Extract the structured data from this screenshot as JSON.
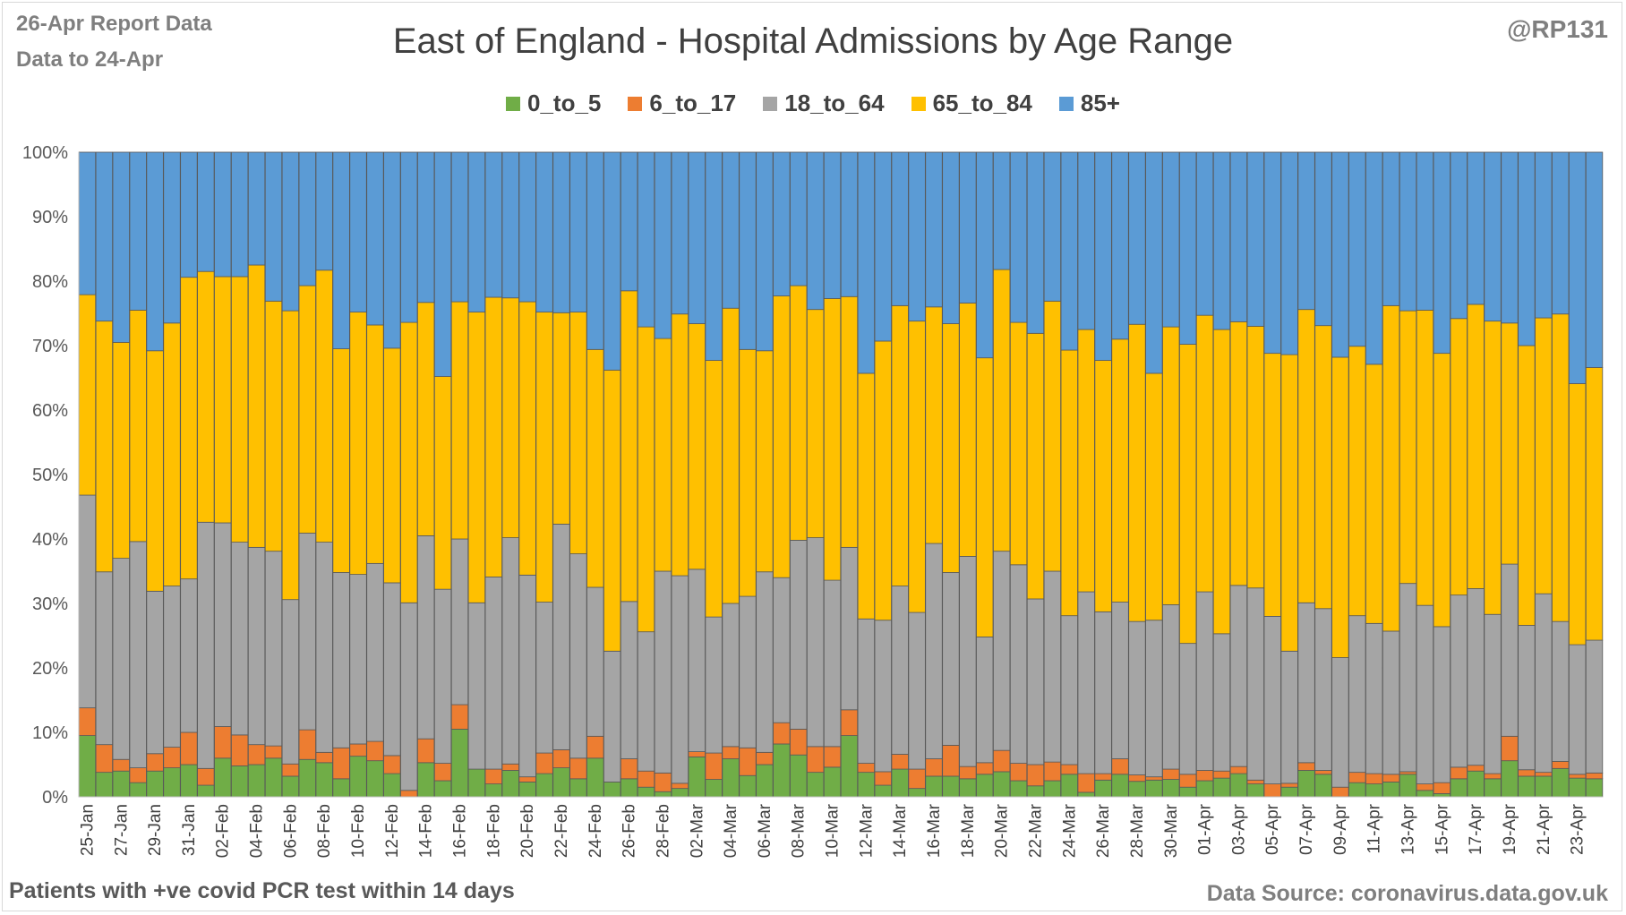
{
  "header": {
    "report_date": "26-Apr Report Data",
    "data_to": "Data to 24-Apr",
    "handle": "@RP131"
  },
  "footer": {
    "note": "Patients with  +ve covid PCR test within 14 days",
    "source": "Data Source: coronavirus.data.gov.uk"
  },
  "colors": {
    "0_to_5": "#70ad47",
    "6_to_17": "#ed7d31",
    "18_to_64": "#a5a5a5",
    "65_to_84": "#ffc000",
    "85+": "#5b9bd5"
  },
  "chart_data": {
    "type": "bar",
    "stacked": true,
    "percent": true,
    "title": "East of England - Hospital Admissions by Age Range",
    "xlabel": "",
    "ylabel": "",
    "ylim": [
      0,
      100
    ],
    "yticks": [
      "0%",
      "10%",
      "20%",
      "30%",
      "40%",
      "50%",
      "60%",
      "70%",
      "80%",
      "90%",
      "100%"
    ],
    "legend_position": "top",
    "grid": true,
    "xtick_labels": [
      "25-Jan",
      "27-Jan",
      "29-Jan",
      "31-Jan",
      "02-Feb",
      "04-Feb",
      "06-Feb",
      "08-Feb",
      "10-Feb",
      "12-Feb",
      "14-Feb",
      "16-Feb",
      "18-Feb",
      "20-Feb",
      "22-Feb",
      "24-Feb",
      "26-Feb",
      "28-Feb",
      "02-Mar",
      "04-Mar",
      "06-Mar",
      "08-Mar",
      "10-Mar",
      "12-Mar",
      "14-Mar",
      "16-Mar",
      "18-Mar",
      "20-Mar",
      "22-Mar",
      "24-Mar",
      "26-Mar",
      "28-Mar",
      "30-Mar",
      "01-Apr",
      "03-Apr",
      "05-Apr",
      "07-Apr",
      "09-Apr",
      "11-Apr",
      "13-Apr",
      "15-Apr",
      "17-Apr",
      "19-Apr",
      "21-Apr",
      "23-Apr"
    ],
    "categories": [
      "25-Jan",
      "26-Jan",
      "27-Jan",
      "28-Jan",
      "29-Jan",
      "30-Jan",
      "31-Jan",
      "01-Feb",
      "02-Feb",
      "03-Feb",
      "04-Feb",
      "05-Feb",
      "06-Feb",
      "07-Feb",
      "08-Feb",
      "09-Feb",
      "10-Feb",
      "11-Feb",
      "12-Feb",
      "13-Feb",
      "14-Feb",
      "15-Feb",
      "16-Feb",
      "17-Feb",
      "18-Feb",
      "19-Feb",
      "20-Feb",
      "21-Feb",
      "22-Feb",
      "23-Feb",
      "24-Feb",
      "25-Feb",
      "26-Feb",
      "27-Feb",
      "28-Feb",
      "01-Mar",
      "02-Mar",
      "03-Mar",
      "04-Mar",
      "05-Mar",
      "06-Mar",
      "07-Mar",
      "08-Mar",
      "09-Mar",
      "10-Mar",
      "11-Mar",
      "12-Mar",
      "13-Mar",
      "14-Mar",
      "15-Mar",
      "16-Mar",
      "17-Mar",
      "18-Mar",
      "19-Mar",
      "20-Mar",
      "21-Mar",
      "22-Mar",
      "23-Mar",
      "24-Mar",
      "25-Mar",
      "26-Mar",
      "27-Mar",
      "28-Mar",
      "29-Mar",
      "30-Mar",
      "31-Mar",
      "01-Apr",
      "02-Apr",
      "03-Apr",
      "04-Apr",
      "05-Apr",
      "06-Apr",
      "07-Apr",
      "08-Apr",
      "09-Apr",
      "10-Apr",
      "11-Apr",
      "12-Apr",
      "13-Apr",
      "14-Apr",
      "15-Apr",
      "16-Apr",
      "17-Apr",
      "18-Apr",
      "19-Apr",
      "20-Apr",
      "21-Apr",
      "22-Apr",
      "23-Apr",
      "24-Apr"
    ],
    "series": [
      {
        "name": "0_to_5",
        "values": [
          9.5,
          3.8,
          4.0,
          2.2,
          4.0,
          4.5,
          5.0,
          1.8,
          6.0,
          4.8,
          5.0,
          6.0,
          3.2,
          5.8,
          5.3,
          2.8,
          6.3,
          5.6,
          3.6,
          0.0,
          5.3,
          2.5,
          10.5,
          4.3,
          2.0,
          4.1,
          2.3,
          3.6,
          4.5,
          2.8,
          6.0,
          2.3,
          2.8,
          1.5,
          0.8,
          1.3,
          6.2,
          2.7,
          5.9,
          3.3,
          5.0,
          8.2,
          6.5,
          3.8,
          4.6,
          9.5,
          3.8,
          1.8,
          4.3,
          1.3,
          3.2,
          3.2,
          2.8,
          3.5,
          3.9,
          2.5,
          1.7,
          2.5,
          3.5,
          0.7,
          2.6,
          3.5,
          2.4,
          2.6,
          2.7,
          1.5,
          2.5,
          2.9,
          3.6,
          2.0,
          0.0,
          1.5,
          4.1,
          3.5,
          0.0,
          2.2,
          2.0,
          2.3,
          3.5,
          1.0,
          0.5,
          2.8,
          4.0,
          2.8,
          5.6,
          3.2,
          3.2,
          4.4,
          2.9,
          2.8
        ]
      },
      {
        "name": "6_to_17",
        "values": [
          4.3,
          4.3,
          1.8,
          2.3,
          2.7,
          3.2,
          5.0,
          2.6,
          4.9,
          4.8,
          3.1,
          1.9,
          1.9,
          4.6,
          1.6,
          4.8,
          1.9,
          3.0,
          2.8,
          1.0,
          3.7,
          2.7,
          3.8,
          0.0,
          2.3,
          1.0,
          0.8,
          3.2,
          2.8,
          3.2,
          3.4,
          0.0,
          3.1,
          2.5,
          2.9,
          0.8,
          0.8,
          4.1,
          1.9,
          4.3,
          1.9,
          3.3,
          4.0,
          4.0,
          3.2,
          4.0,
          1.4,
          2.1,
          2.3,
          3.0,
          2.7,
          4.8,
          1.9,
          1.8,
          3.3,
          2.7,
          3.3,
          2.9,
          1.5,
          2.9,
          1.0,
          2.4,
          1.0,
          0.5,
          1.6,
          2.0,
          1.6,
          1.1,
          1.1,
          0.6,
          2.0,
          0.6,
          1.2,
          0.6,
          1.5,
          1.6,
          1.6,
          1.2,
          0.4,
          1.0,
          1.7,
          1.8,
          0.9,
          0.8,
          3.8,
          1.0,
          0.6,
          1.1,
          0.6,
          0.9
        ]
      },
      {
        "name": "18_to_64",
        "values": [
          33.0,
          26.8,
          31.2,
          35.1,
          25.2,
          25.0,
          23.8,
          38.2,
          31.6,
          29.9,
          30.6,
          30.2,
          25.5,
          30.5,
          32.6,
          27.2,
          26.3,
          27.6,
          26.8,
          29.1,
          31.5,
          27.0,
          25.7,
          25.8,
          29.8,
          35.1,
          31.3,
          23.4,
          35.0,
          31.7,
          23.1,
          20.3,
          24.4,
          21.6,
          31.3,
          32.2,
          28.3,
          21.1,
          22.2,
          23.5,
          28.0,
          22.5,
          29.3,
          32.4,
          25.8,
          25.2,
          22.4,
          23.5,
          26.1,
          24.3,
          33.4,
          26.8,
          32.6,
          19.5,
          30.9,
          30.8,
          25.7,
          29.6,
          23.1,
          28.2,
          25.1,
          24.3,
          23.8,
          24.3,
          25.5,
          20.3,
          27.7,
          21.3,
          28.1,
          29.8,
          26.0,
          20.5,
          24.8,
          25.1,
          20.1,
          24.3,
          23.3,
          22.2,
          29.2,
          27.7,
          24.2,
          26.7,
          27.4,
          24.7,
          26.7,
          22.4,
          27.7,
          21.7,
          20.1,
          20.6
        ]
      },
      {
        "name": "65_to_84",
        "values": [
          31.1,
          38.9,
          33.5,
          35.9,
          37.3,
          40.8,
          46.8,
          38.9,
          38.2,
          41.2,
          43.8,
          38.8,
          44.8,
          38.4,
          42.2,
          34.7,
          40.7,
          37.0,
          36.4,
          43.5,
          36.2,
          33.0,
          36.8,
          45.1,
          43.4,
          37.2,
          42.4,
          45.0,
          32.8,
          37.5,
          36.9,
          43.6,
          48.2,
          47.3,
          36.1,
          40.6,
          38.1,
          39.8,
          45.8,
          38.3,
          34.3,
          43.7,
          39.5,
          35.4,
          43.7,
          38.9,
          38.1,
          43.3,
          43.5,
          45.2,
          36.7,
          38.6,
          39.3,
          43.3,
          43.7,
          37.6,
          41.2,
          41.9,
          41.2,
          40.7,
          39.0,
          40.8,
          46.1,
          38.3,
          43.1,
          46.4,
          42.9,
          47.2,
          40.9,
          40.6,
          40.8,
          46.0,
          45.5,
          43.9,
          46.6,
          41.8,
          40.2,
          50.5,
          42.3,
          45.8,
          42.4,
          42.9,
          44.1,
          45.5,
          37.4,
          43.4,
          42.8,
          47.7,
          40.5,
          42.3
        ]
      },
      {
        "name": "85+",
        "values": [
          22.1,
          26.2,
          29.5,
          24.5,
          30.8,
          26.5,
          19.4,
          18.5,
          19.3,
          19.3,
          17.5,
          23.1,
          24.6,
          20.7,
          18.3,
          30.5,
          24.8,
          26.8,
          30.4,
          26.4,
          23.3,
          34.8,
          23.2,
          24.8,
          22.5,
          22.6,
          23.2,
          24.8,
          24.9,
          24.8,
          30.6,
          33.8,
          21.5,
          27.1,
          28.9,
          25.1,
          26.6,
          32.3,
          24.2,
          30.6,
          30.8,
          22.3,
          20.7,
          24.4,
          22.7,
          22.4,
          34.3,
          29.3,
          23.8,
          26.2,
          24.0,
          26.6,
          23.4,
          31.9,
          18.2,
          26.4,
          28.1,
          23.1,
          30.7,
          27.5,
          32.3,
          29.0,
          26.7,
          34.3,
          27.1,
          29.8,
          25.3,
          27.5,
          26.3,
          27.0,
          31.2,
          31.4,
          24.4,
          26.9,
          31.8,
          30.1,
          32.9,
          23.8,
          24.6,
          24.5,
          31.2,
          25.8,
          23.6,
          26.2,
          26.5,
          30.0,
          25.7,
          25.1,
          35.9,
          33.4
        ]
      }
    ]
  }
}
